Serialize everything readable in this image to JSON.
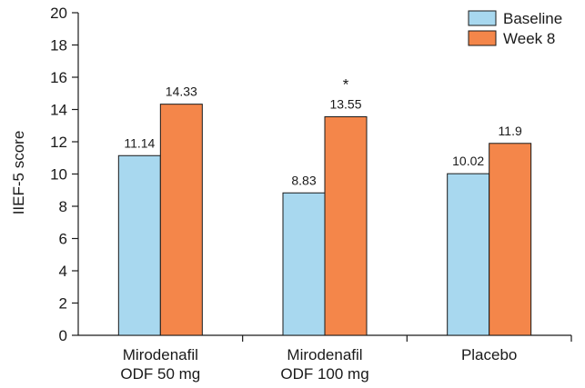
{
  "chart_data": {
    "type": "bar",
    "categories": [
      [
        "Mirodenafil",
        "ODF 50 mg"
      ],
      [
        "Mirodenafil",
        "ODF 100 mg"
      ],
      [
        "Placebo"
      ]
    ],
    "series": [
      {
        "name": "Baseline",
        "values": [
          11.14,
          8.83,
          10.02
        ],
        "labels": [
          "11.14",
          "8.83",
          "10.02"
        ],
        "color": "#a8d8ef"
      },
      {
        "name": "Week 8",
        "values": [
          14.33,
          13.55,
          11.9
        ],
        "labels": [
          "14.33",
          "13.55",
          "11.9"
        ],
        "color": "#f4864a"
      }
    ],
    "ylabel": "IIEF-5 score",
    "xlabel": "",
    "ylim": [
      0,
      20
    ],
    "yticks": [
      "0",
      "2",
      "4",
      "6",
      "8",
      "10",
      "12",
      "14",
      "16",
      "18",
      "20"
    ],
    "annotations": [
      {
        "text": "*",
        "category_index": 1,
        "series_index": 1
      }
    ],
    "legend_position": "top-right",
    "grid": false
  }
}
